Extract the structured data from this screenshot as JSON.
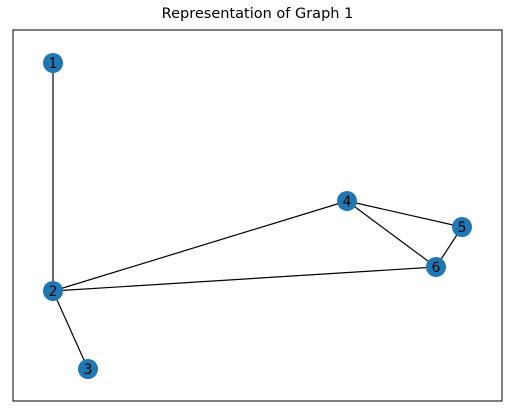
{
  "title": "Representation of Graph 1",
  "colors": {
    "node": "#1f77b4",
    "edge": "#000000",
    "label": "#000000",
    "frame": "#000000"
  },
  "graph": {
    "nodes": [
      {
        "id": "1",
        "label": "1"
      },
      {
        "id": "2",
        "label": "2"
      },
      {
        "id": "3",
        "label": "3"
      },
      {
        "id": "4",
        "label": "4"
      },
      {
        "id": "5",
        "label": "5"
      },
      {
        "id": "6",
        "label": "6"
      }
    ],
    "edges": [
      {
        "source": "1",
        "target": "2"
      },
      {
        "source": "2",
        "target": "3"
      },
      {
        "source": "2",
        "target": "4"
      },
      {
        "source": "2",
        "target": "6"
      },
      {
        "source": "4",
        "target": "5"
      },
      {
        "source": "4",
        "target": "6"
      },
      {
        "source": "5",
        "target": "6"
      }
    ]
  }
}
